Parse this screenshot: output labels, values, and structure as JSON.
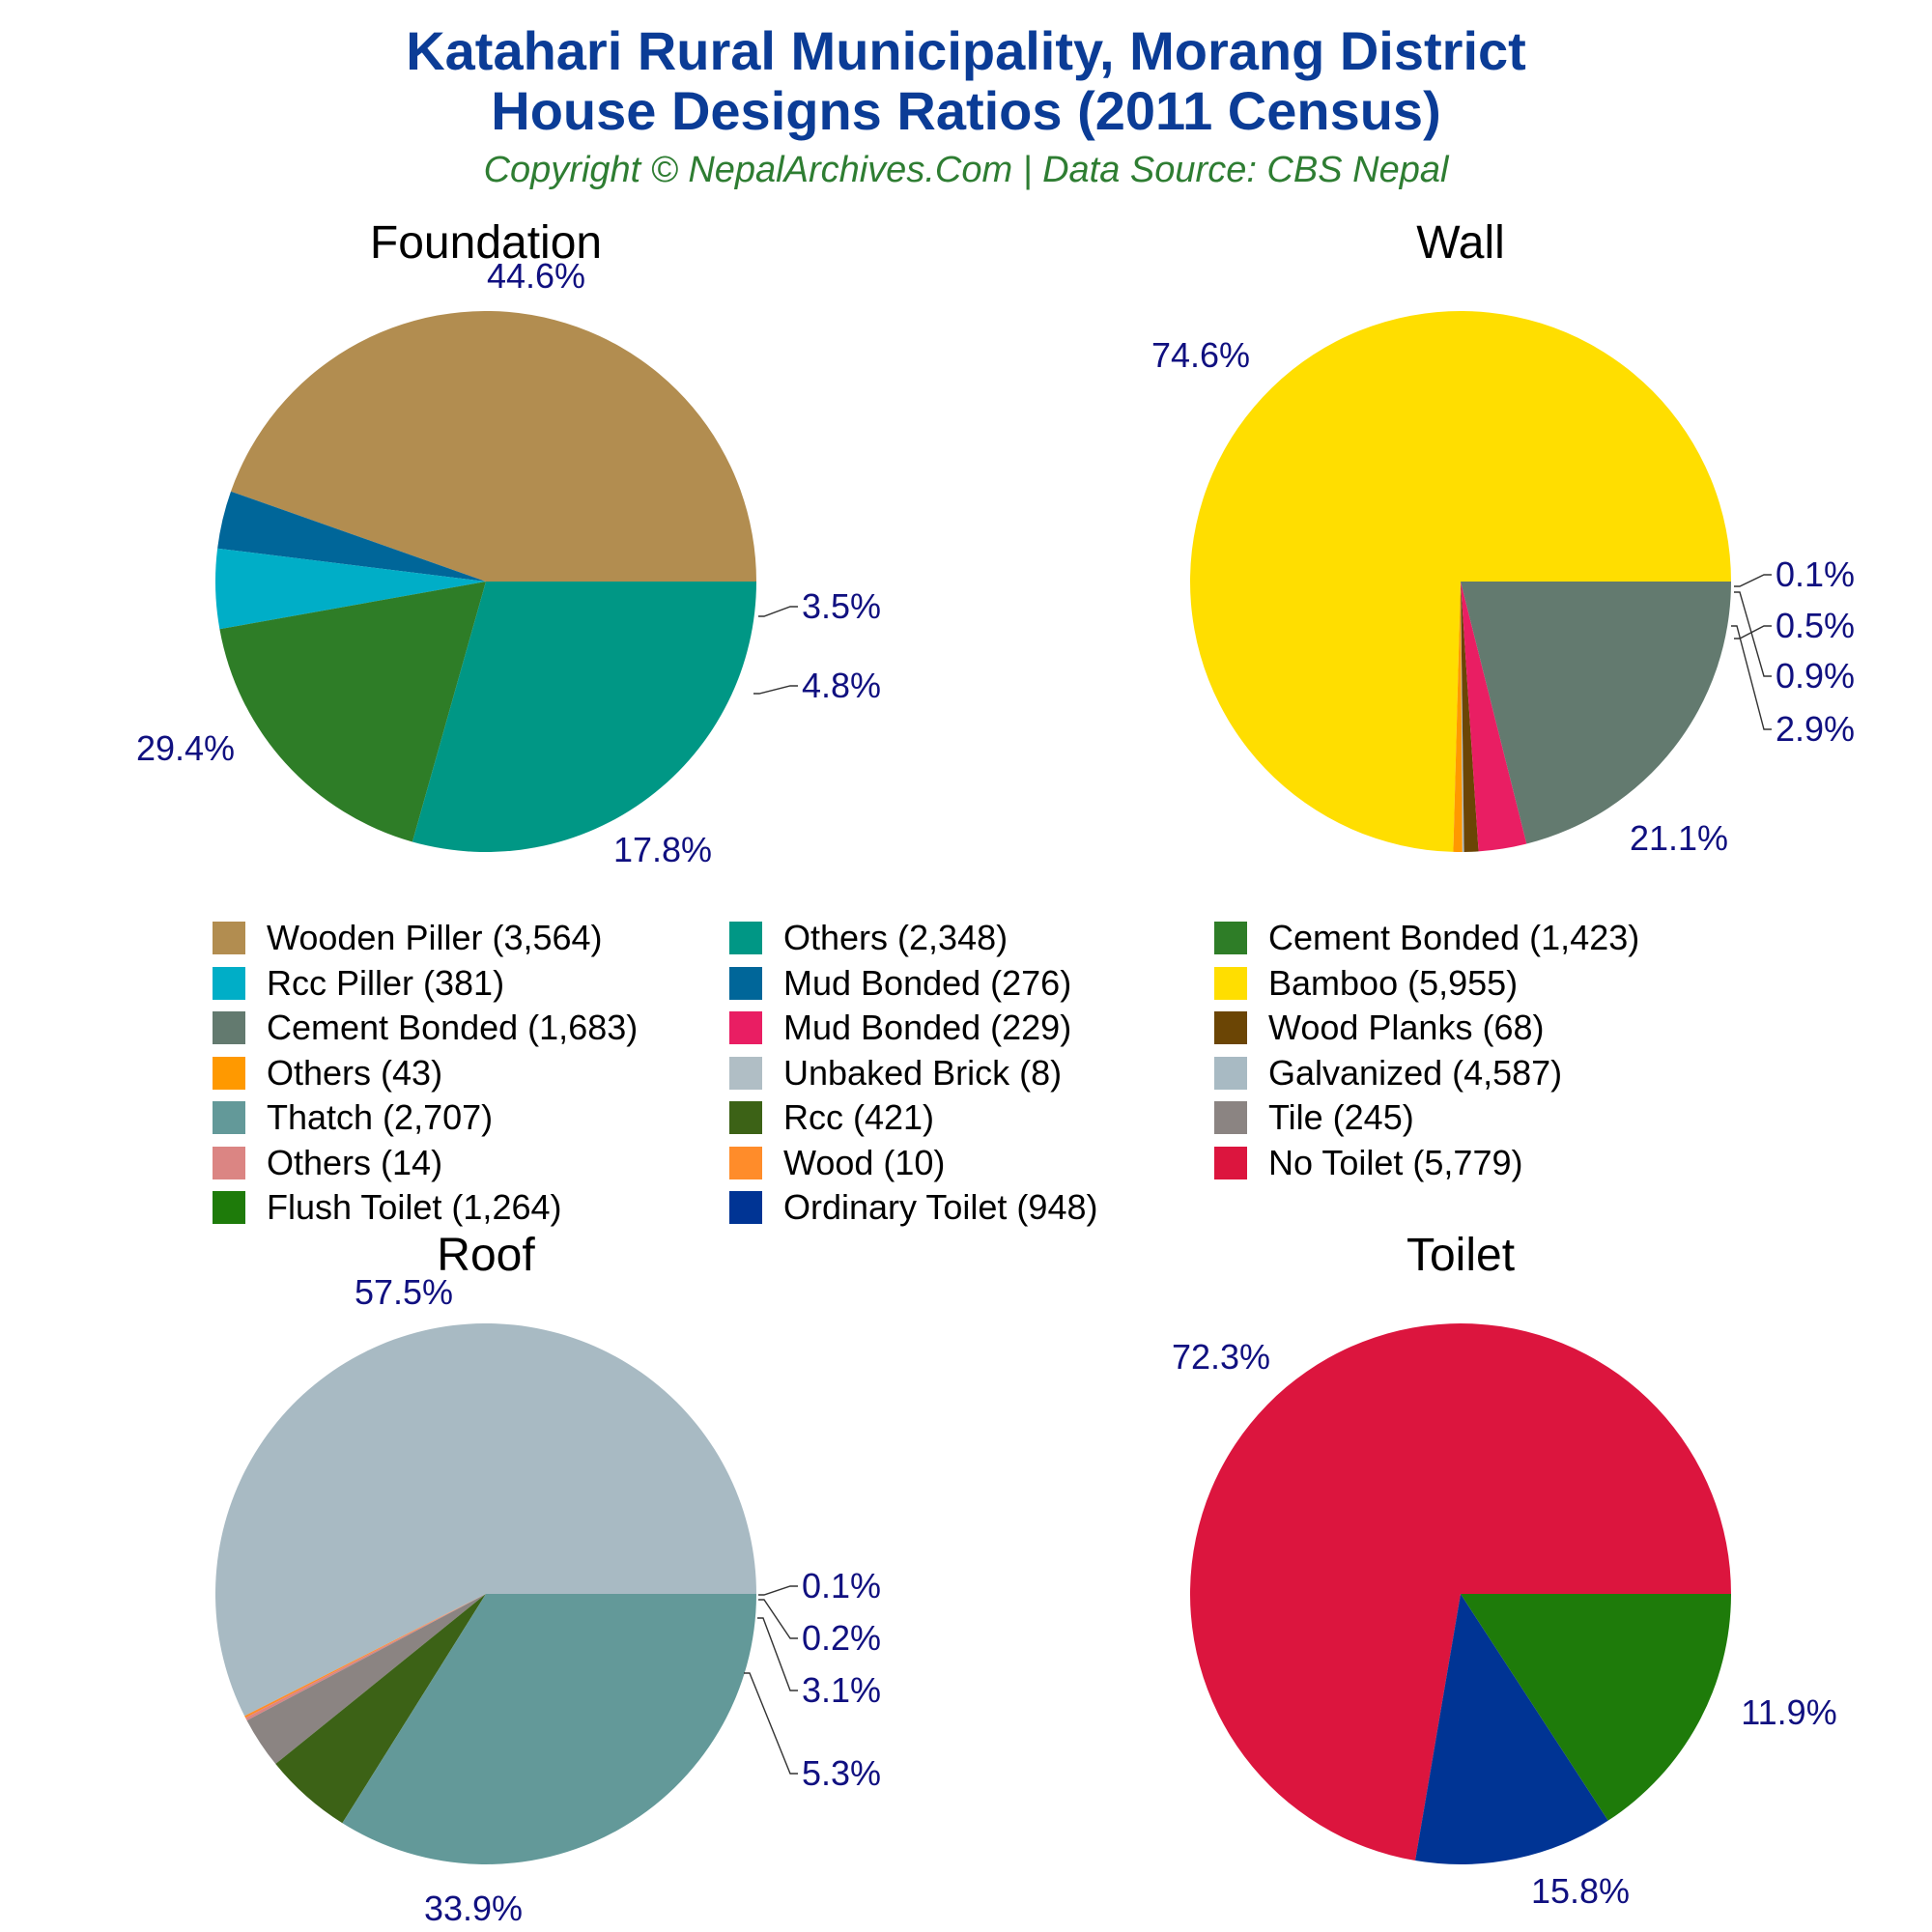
{
  "header": {
    "title_line1": "Katahari Rural Municipality, Morang District",
    "title_line2": "House Designs Ratios (2011 Census)",
    "subtitle": "Copyright © NepalArchives.Com | Data Source: CBS Nepal"
  },
  "chart_data": [
    {
      "type": "pie",
      "title": "Foundation",
      "slices": [
        {
          "label": "Wooden Piller",
          "value": 3564,
          "percent_label": "44.6%",
          "color": "#b28d50"
        },
        {
          "label": "Mud Bonded",
          "value": 276,
          "percent_label": "3.5%",
          "color": "#006699"
        },
        {
          "label": "Rcc Piller",
          "value": 381,
          "percent_label": "4.8%",
          "color": "#00aec7"
        },
        {
          "label": "Cement Bonded",
          "value": 1423,
          "percent_label": "17.8%",
          "color": "#2e7d27"
        },
        {
          "label": "Others",
          "value": 2348,
          "percent_label": "29.4%",
          "color": "#009785"
        }
      ]
    },
    {
      "type": "pie",
      "title": "Wall",
      "slices": [
        {
          "label": "Bamboo",
          "value": 5955,
          "percent_label": "74.6%",
          "color": "#ffde00"
        },
        {
          "label": "Others",
          "value": 43,
          "percent_label": "0.5%",
          "color": "#ff9900"
        },
        {
          "label": "Unbaked Brick",
          "value": 8,
          "percent_label": "0.1%",
          "color": "#b0bec5"
        },
        {
          "label": "Wood Planks",
          "value": 68,
          "percent_label": "0.9%",
          "color": "#6b4505"
        },
        {
          "label": "Mud Bonded",
          "value": 229,
          "percent_label": "2.9%",
          "color": "#e91e63"
        },
        {
          "label": "Cement Bonded",
          "value": 1683,
          "percent_label": "21.1%",
          "color": "#637a6f"
        }
      ]
    },
    {
      "type": "pie",
      "title": "Roof",
      "slices": [
        {
          "label": "Galvanized",
          "value": 4587,
          "percent_label": "57.5%",
          "color": "#a8bac3"
        },
        {
          "label": "Wood",
          "value": 10,
          "percent_label": "0.1%",
          "color": "#ff8c2a"
        },
        {
          "label": "Others",
          "value": 14,
          "percent_label": "0.2%",
          "color": "#db8583"
        },
        {
          "label": "Tile",
          "value": 245,
          "percent_label": "3.1%",
          "color": "#8b8482"
        },
        {
          "label": "Rcc",
          "value": 421,
          "percent_label": "5.3%",
          "color": "#3c6216"
        },
        {
          "label": "Thatch",
          "value": 2707,
          "percent_label": "33.9%",
          "color": "#639999"
        }
      ]
    },
    {
      "type": "pie",
      "title": "Toilet",
      "slices": [
        {
          "label": "No Toilet",
          "value": 5779,
          "percent_label": "72.3%",
          "color": "#dc153e"
        },
        {
          "label": "Ordinary Toilet",
          "value": 948,
          "percent_label": "11.9%",
          "color": "#003494"
        },
        {
          "label": "Flush Toilet",
          "value": 1264,
          "percent_label": "15.8%",
          "color": "#1e7b0a"
        }
      ]
    }
  ],
  "legend": [
    {
      "text": "Wooden Piller (3,564)",
      "color": "#b28d50"
    },
    {
      "text": "Others (2,348)",
      "color": "#009785"
    },
    {
      "text": "Cement Bonded (1,423)",
      "color": "#2e7d27"
    },
    {
      "text": "Rcc Piller (381)",
      "color": "#00aec7"
    },
    {
      "text": "Mud Bonded (276)",
      "color": "#006699"
    },
    {
      "text": "Bamboo (5,955)",
      "color": "#ffde00"
    },
    {
      "text": "Cement Bonded (1,683)",
      "color": "#637a6f"
    },
    {
      "text": "Mud Bonded (229)",
      "color": "#e91e63"
    },
    {
      "text": "Wood Planks (68)",
      "color": "#6b4505"
    },
    {
      "text": "Others (43)",
      "color": "#ff9900"
    },
    {
      "text": "Unbaked Brick (8)",
      "color": "#b0bec5"
    },
    {
      "text": "Galvanized (4,587)",
      "color": "#a8bac3"
    },
    {
      "text": "Thatch (2,707)",
      "color": "#639999"
    },
    {
      "text": "Rcc (421)",
      "color": "#3c6216"
    },
    {
      "text": "Tile (245)",
      "color": "#8b8482"
    },
    {
      "text": "Others (14)",
      "color": "#db8583"
    },
    {
      "text": "Wood (10)",
      "color": "#ff8c2a"
    },
    {
      "text": "No Toilet (5,779)",
      "color": "#dc153e"
    },
    {
      "text": "Flush Toilet (1,264)",
      "color": "#1e7b0a"
    },
    {
      "text": "Ordinary Toilet (948)",
      "color": "#003494"
    }
  ]
}
